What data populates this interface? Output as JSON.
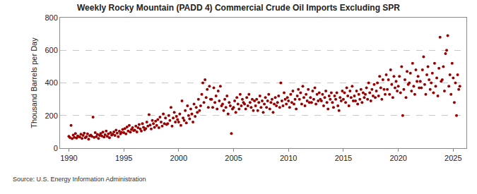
{
  "chart_data": {
    "type": "scatter",
    "title": "Weekly Rocky Mountain (PADD 4) Commercial Crude Oil Imports Excluding SPR",
    "ylabel": "Thousand Barrels per Day",
    "annotations": [
      "Source: U.S. Energy Information Administration"
    ],
    "color": "#990000",
    "marker": "circle",
    "grid": true,
    "xlim": [
      1989.2,
      2026.2
    ],
    "xticks": [
      1990,
      1995,
      2000,
      2005,
      2010,
      2015,
      2020,
      2025
    ],
    "ylim": [
      0,
      800
    ],
    "yticks": [
      0,
      200,
      400,
      600,
      800
    ],
    "x": [
      1990.0,
      1990.1,
      1990.2,
      1990.3,
      1990.4,
      1990.5,
      1990.6,
      1990.7,
      1990.8,
      1990.9,
      1991.0,
      1991.1,
      1991.2,
      1991.3,
      1991.4,
      1991.5,
      1991.6,
      1991.7,
      1991.8,
      1991.9,
      1992.0,
      1992.1,
      1992.2,
      1992.3,
      1992.4,
      1992.5,
      1992.6,
      1992.7,
      1992.8,
      1992.9,
      1993.0,
      1993.1,
      1993.2,
      1993.3,
      1993.4,
      1993.5,
      1993.6,
      1993.7,
      1993.8,
      1993.9,
      1994.0,
      1994.1,
      1994.2,
      1994.3,
      1994.4,
      1994.5,
      1994.6,
      1994.7,
      1994.8,
      1994.9,
      1995.0,
      1995.1,
      1995.2,
      1995.3,
      1995.4,
      1995.5,
      1995.6,
      1995.7,
      1995.8,
      1995.9,
      1996.0,
      1996.1,
      1996.2,
      1996.3,
      1996.4,
      1996.5,
      1996.6,
      1996.7,
      1996.8,
      1996.9,
      1997.0,
      1997.1,
      1997.2,
      1997.3,
      1997.4,
      1997.5,
      1997.6,
      1997.7,
      1997.8,
      1997.9,
      1998.0,
      1998.1,
      1998.2,
      1998.3,
      1998.4,
      1998.5,
      1998.6,
      1998.7,
      1998.8,
      1998.9,
      1999.0,
      1999.1,
      1999.2,
      1999.3,
      1999.4,
      1999.5,
      1999.6,
      1999.7,
      1999.8,
      1999.9,
      2000.0,
      2000.1,
      2000.2,
      2000.3,
      2000.4,
      2000.5,
      2000.6,
      2000.7,
      2000.8,
      2000.9,
      2001.0,
      2001.1,
      2001.2,
      2001.3,
      2001.4,
      2001.5,
      2001.6,
      2001.7,
      2001.8,
      2001.9,
      2002.0,
      2002.1,
      2002.2,
      2002.3,
      2002.4,
      2002.5,
      2002.6,
      2002.7,
      2002.8,
      2002.9,
      2003.0,
      2003.1,
      2003.2,
      2003.3,
      2003.4,
      2003.5,
      2003.6,
      2003.7,
      2003.8,
      2003.9,
      2004.0,
      2004.1,
      2004.2,
      2004.3,
      2004.4,
      2004.5,
      2004.6,
      2004.7,
      2004.8,
      2004.9,
      2005.0,
      2005.1,
      2005.2,
      2005.3,
      2005.4,
      2005.5,
      2005.6,
      2005.7,
      2005.8,
      2005.9,
      2006.0,
      2006.1,
      2006.2,
      2006.3,
      2006.4,
      2006.5,
      2006.6,
      2006.7,
      2006.8,
      2006.9,
      2007.0,
      2007.1,
      2007.2,
      2007.3,
      2007.4,
      2007.5,
      2007.6,
      2007.7,
      2007.8,
      2007.9,
      2008.0,
      2008.1,
      2008.2,
      2008.3,
      2008.4,
      2008.5,
      2008.6,
      2008.7,
      2008.8,
      2008.9,
      2009.0,
      2009.1,
      2009.2,
      2009.3,
      2009.4,
      2009.5,
      2009.6,
      2009.7,
      2009.8,
      2009.9,
      2010.0,
      2010.1,
      2010.2,
      2010.3,
      2010.4,
      2010.5,
      2010.6,
      2010.7,
      2010.8,
      2010.9,
      2011.0,
      2011.1,
      2011.2,
      2011.3,
      2011.4,
      2011.5,
      2011.6,
      2011.7,
      2011.8,
      2011.9,
      2012.0,
      2012.1,
      2012.2,
      2012.3,
      2012.4,
      2012.5,
      2012.6,
      2012.7,
      2012.8,
      2012.9,
      2013.0,
      2013.1,
      2013.2,
      2013.3,
      2013.4,
      2013.5,
      2013.6,
      2013.7,
      2013.8,
      2013.9,
      2014.0,
      2014.1,
      2014.2,
      2014.3,
      2014.4,
      2014.5,
      2014.6,
      2014.7,
      2014.8,
      2014.9,
      2015.0,
      2015.1,
      2015.2,
      2015.3,
      2015.4,
      2015.5,
      2015.6,
      2015.7,
      2015.8,
      2015.9,
      2016.0,
      2016.1,
      2016.2,
      2016.3,
      2016.4,
      2016.5,
      2016.6,
      2016.7,
      2016.8,
      2016.9,
      2017.0,
      2017.1,
      2017.2,
      2017.3,
      2017.4,
      2017.5,
      2017.6,
      2017.7,
      2017.8,
      2017.9,
      2018.0,
      2018.1,
      2018.2,
      2018.3,
      2018.4,
      2018.5,
      2018.6,
      2018.7,
      2018.8,
      2018.9,
      2019.0,
      2019.1,
      2019.2,
      2019.3,
      2019.4,
      2019.5,
      2019.6,
      2019.7,
      2019.8,
      2019.9,
      2020.0,
      2020.1,
      2020.2,
      2020.3,
      2020.4,
      2020.5,
      2020.6,
      2020.7,
      2020.8,
      2020.9,
      2021.0,
      2021.1,
      2021.2,
      2021.3,
      2021.4,
      2021.5,
      2021.6,
      2021.7,
      2021.8,
      2021.9,
      2022.0,
      2022.1,
      2022.2,
      2022.3,
      2022.4,
      2022.5,
      2022.6,
      2022.7,
      2022.8,
      2022.9,
      2023.0,
      2023.1,
      2023.2,
      2023.3,
      2023.4,
      2023.5,
      2023.6,
      2023.7,
      2023.8,
      2023.9,
      2024.0,
      2024.1,
      2024.2,
      2024.3,
      2024.4,
      2024.5,
      2024.6,
      2024.7,
      2024.8,
      2024.9,
      2025.0,
      2025.1,
      2025.2,
      2025.3,
      2025.4,
      2025.5,
      2025.6
    ],
    "values": [
      72,
      65,
      140,
      58,
      80,
      66,
      90,
      62,
      75,
      70,
      68,
      85,
      60,
      78,
      92,
      64,
      70,
      88,
      55,
      76,
      80,
      72,
      190,
      66,
      95,
      70,
      84,
      60,
      78,
      90,
      75,
      98,
      68,
      82,
      105,
      72,
      88,
      64,
      95,
      80,
      85,
      100,
      78,
      110,
      92,
      70,
      104,
      88,
      96,
      115,
      95,
      120,
      88,
      130,
      105,
      140,
      98,
      115,
      125,
      108,
      110,
      135,
      100,
      125,
      145,
      118,
      105,
      150,
      128,
      112,
      120,
      160,
      135,
      205,
      142,
      118,
      170,
      150,
      128,
      165,
      140,
      175,
      125,
      190,
      160,
      135,
      210,
      150,
      185,
      145,
      150,
      200,
      170,
      250,
      135,
      185,
      220,
      160,
      195,
      175,
      160,
      210,
      140,
      290,
      185,
      170,
      230,
      155,
      260,
      200,
      180,
      240,
      210,
      160,
      270,
      195,
      250,
      220,
      300,
      230,
      260,
      330,
      400,
      280,
      420,
      310,
      360,
      250,
      380,
      300,
      300,
      250,
      370,
      280,
      320,
      240,
      350,
      290,
      380,
      260,
      270,
      230,
      300,
      250,
      320,
      210,
      280,
      260,
      90,
      240,
      250,
      290,
      220,
      310,
      270,
      240,
      330,
      260,
      300,
      280,
      270,
      240,
      310,
      260,
      330,
      280,
      250,
      300,
      230,
      290,
      260,
      300,
      230,
      280,
      320,
      250,
      290,
      220,
      270,
      310,
      250,
      290,
      330,
      240,
      280,
      300,
      220,
      270,
      310,
      260,
      280,
      320,
      250,
      400,
      290,
      260,
      340,
      300,
      270,
      310,
      290,
      250,
      330,
      280,
      350,
      270,
      300,
      240,
      320,
      360,
      300,
      340,
      270,
      380,
      310,
      260,
      330,
      290,
      360,
      280,
      310,
      280,
      350,
      300,
      370,
      270,
      330,
      290,
      340,
      300,
      290,
      330,
      260,
      310,
      350,
      280,
      240,
      320,
      300,
      340,
      280,
      250,
      320,
      300,
      340,
      260,
      230,
      310,
      290,
      350,
      300,
      340,
      280,
      370,
      320,
      260,
      350,
      310,
      380,
      290,
      320,
      290,
      350,
      270,
      330,
      300,
      360,
      280,
      340,
      310,
      330,
      370,
      300,
      400,
      340,
      290,
      360,
      320,
      390,
      310,
      350,
      400,
      320,
      440,
      370,
      300,
      420,
      360,
      330,
      450,
      360,
      420,
      330,
      480,
      390,
      310,
      440,
      370,
      410,
      350,
      380,
      440,
      340,
      500,
      200,
      360,
      420,
      310,
      470,
      390,
      400,
      460,
      350,
      520,
      380,
      330,
      480,
      410,
      440,
      370,
      410,
      370,
      480,
      560,
      390,
      330,
      450,
      500,
      420,
      360,
      400,
      460,
      340,
      520,
      380,
      430,
      320,
      490,
      680,
      410,
      420,
      500,
      350,
      580,
      600,
      690,
      380,
      450,
      330,
      520,
      430,
      280,
      400,
      200,
      450,
      360,
      380
    ]
  }
}
